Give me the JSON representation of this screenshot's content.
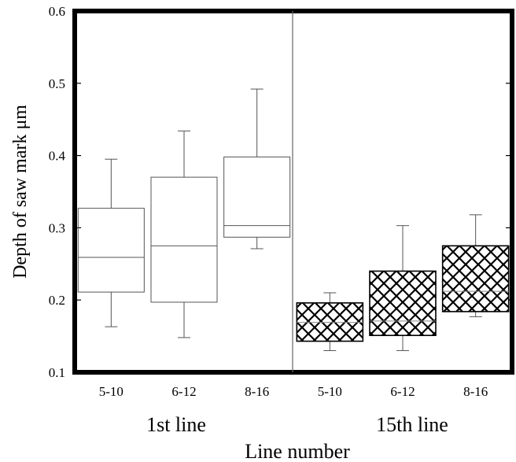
{
  "chart_data": {
    "type": "box",
    "ylabel": "Depth of saw mark μm",
    "xlabel": "Line number",
    "ylim": [
      0.1,
      0.6
    ],
    "yticks": [
      "0.1",
      "0.2",
      "0.3",
      "0.4",
      "0.5",
      "0.6"
    ],
    "grid": false,
    "groups": [
      {
        "name": "1st line",
        "fill": "none",
        "boxes": [
          {
            "category": "5-10",
            "whisker_low": 0.163,
            "q1": 0.211,
            "median": 0.259,
            "q3": 0.327,
            "whisker_high": 0.395
          },
          {
            "category": "6-12",
            "whisker_low": 0.148,
            "q1": 0.197,
            "median": 0.275,
            "q3": 0.37,
            "whisker_high": 0.434
          },
          {
            "category": "8-16",
            "whisker_low": 0.271,
            "q1": 0.287,
            "median": 0.303,
            "q3": 0.398,
            "whisker_high": 0.492
          }
        ]
      },
      {
        "name": "15th line",
        "fill": "crosshatch",
        "boxes": [
          {
            "category": "5-10",
            "whisker_low": 0.13,
            "q1": 0.143,
            "median": 0.169,
            "q3": 0.196,
            "whisker_high": 0.21
          },
          {
            "category": "6-12",
            "whisker_low": 0.13,
            "q1": 0.151,
            "median": 0.171,
            "q3": 0.24,
            "whisker_high": 0.303
          },
          {
            "category": "8-16",
            "whisker_low": 0.177,
            "q1": 0.184,
            "median": 0.212,
            "q3": 0.275,
            "whisker_high": 0.318
          }
        ]
      }
    ]
  }
}
